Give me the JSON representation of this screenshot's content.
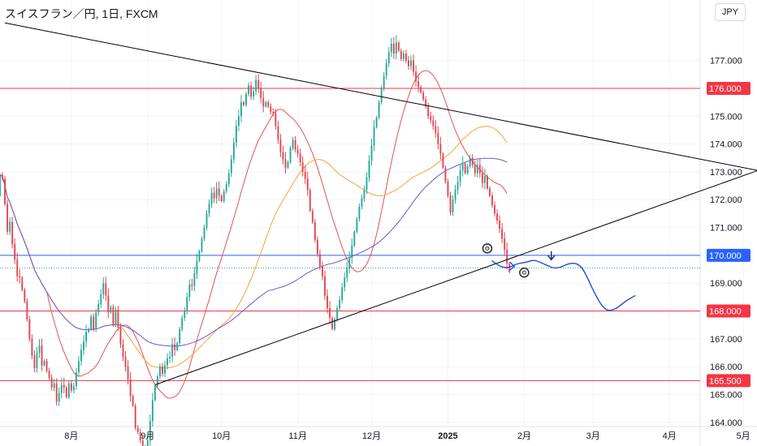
{
  "header": {
    "title": "スイスフラン／円, 1日, FXCM",
    "currency_button": "JPY"
  },
  "colors": {
    "bull": "#26a69a",
    "bear": "#e5434c",
    "grid": "#f0f3fa",
    "axis_text": "#131722",
    "red_level": "#f23645",
    "blue_level": "#2962ff",
    "sma_short": "#e8524a",
    "sma_mid": "#f7a23b",
    "sma_long": "#6a55d8",
    "trendline": "#000000",
    "projection": "#1c4fd8"
  },
  "chart_data": {
    "type": "candlestick",
    "title": "スイスフラン／円, 1日, FXCM",
    "ylim": [
      163.85,
      178.3
    ],
    "y_ticks": [
      {
        "v": 177,
        "label": "177.000"
      },
      {
        "v": 175,
        "label": "175.000"
      },
      {
        "v": 174,
        "label": "174.000"
      },
      {
        "v": 173,
        "label": "173.000"
      },
      {
        "v": 172,
        "label": "172.000"
      },
      {
        "v": 171,
        "label": "171.000"
      },
      {
        "v": 169,
        "label": "169.000"
      },
      {
        "v": 167,
        "label": "167.000"
      },
      {
        "v": 166,
        "label": "166.000"
      },
      {
        "v": 165,
        "label": "165.000"
      },
      {
        "v": 164,
        "label": "164.000"
      }
    ],
    "x_ticks": [
      {
        "day": 29,
        "label": "8月",
        "bold": false
      },
      {
        "day": 60,
        "label": "9月",
        "bold": false
      },
      {
        "day": 90,
        "label": "10月",
        "bold": false
      },
      {
        "day": 121,
        "label": "11月",
        "bold": false
      },
      {
        "day": 151,
        "label": "12月",
        "bold": false
      },
      {
        "day": 182,
        "label": "2025",
        "bold": true
      },
      {
        "day": 213,
        "label": "2月",
        "bold": false
      },
      {
        "day": 241,
        "label": "3月",
        "bold": false
      },
      {
        "day": 272,
        "label": "4月",
        "bold": false
      },
      {
        "day": 302,
        "label": "5月",
        "bold": false
      }
    ],
    "horizontal_levels": [
      {
        "v": 176.0,
        "label": "176.000",
        "color": "red"
      },
      {
        "v": 170.0,
        "label": "170.000",
        "color": "blue"
      },
      {
        "v": 168.0,
        "label": "168.000",
        "color": "red"
      },
      {
        "v": 165.5,
        "label": "165.500",
        "color": "red"
      }
    ],
    "dotted_level": 169.55,
    "trendlines": [
      {
        "from": {
          "day": 2,
          "v": 178.35
        },
        "to": {
          "day": 308,
          "v": 173.05
        }
      },
      {
        "from": {
          "day": 63,
          "v": 165.35
        },
        "to": {
          "day": 308,
          "v": 173.05
        }
      }
    ],
    "anchor": {
      "day": 212,
      "close": 169.4
    },
    "candle_deltas": [
      0.75,
      -0.15,
      -0.9,
      -1.0,
      0.35,
      -0.8,
      -0.55,
      -0.6,
      -0.05,
      -0.45,
      -0.4,
      -0.65,
      -0.7,
      -0.6,
      -0.45,
      0.55,
      0.25,
      -0.7,
      0.15,
      -0.35,
      -0.25,
      -0.35,
      0.15,
      -0.65,
      0.3,
      0.3,
      -0.1,
      -0.35,
      0.5,
      -0.25,
      0.15,
      0.5,
      0.4,
      0.4,
      0.3,
      0.35,
      0.1,
      0.45,
      -0.45,
      0.6,
      0.3,
      0.35,
      0.4,
      -0.45,
      -0.6,
      0.2,
      -0.65,
      0.55,
      -0.65,
      -0.6,
      -0.45,
      -0.35,
      -0.45,
      -0.6,
      -0.35,
      -0.8,
      -0.15,
      -0.3,
      -0.85,
      0.5,
      0.35,
      0.7,
      0.75,
      0.5,
      0.35,
      0.35,
      -0.25,
      0.3,
      0.25,
      0.05,
      0.45,
      -0.2,
      0.25,
      0.5,
      0.4,
      0.25,
      0.5,
      0.45,
      -0.05,
      0.45,
      0.45,
      0.35,
      0.45,
      0.4,
      0.5,
      0.35,
      0.4,
      -0.2,
      0.35,
      -0.25,
      -0.2,
      0.35,
      0.25,
      0.4,
      0.5,
      0.6,
      0.6,
      0.35,
      0.5,
      -0.1,
      0.4,
      0.3,
      -0.4,
      0.2,
      0.4,
      -0.3,
      -0.35,
      -0.3,
      0.15,
      -0.15,
      -0.2,
      -0.05,
      -0.45,
      -0.5,
      -0.45,
      -0.25,
      -0.3,
      0.2,
      0.5,
      0.3,
      -0.35,
      -0.15,
      -0.3,
      -0.35,
      -0.25,
      -0.4,
      -0.75,
      -0.4,
      -0.65,
      -0.5,
      -0.45,
      -0.35,
      -0.7,
      -0.45,
      -0.35,
      -0.4,
      0.35,
      0.4,
      0.3,
      0.45,
      0.35,
      0.35,
      0.35,
      0.45,
      0.5,
      0.45,
      0.45,
      0.3,
      0.3,
      0.45,
      0.6,
      0.55,
      0.65,
      0.35,
      0.55,
      0.5,
      0.45,
      0.45,
      0.4,
      0.3,
      -0.35,
      0.4,
      -0.3,
      -0.3,
      0.2,
      -0.25,
      -0.2,
      0.2,
      -0.4,
      -0.35,
      -0.2,
      -0.2,
      -0.25,
      -0.25,
      -0.35,
      -0.15,
      -0.2,
      -0.25,
      -0.4,
      -0.35,
      -0.5,
      -0.5,
      -0.5,
      -0.6,
      0.45,
      0.35,
      0.3,
      0.4,
      0.25,
      -0.35,
      0.25,
      0.3,
      -0.25,
      -0.3,
      0.3,
      -0.3,
      -0.35,
      0.25,
      -0.45,
      -0.25,
      -0.35,
      -0.3,
      -0.25,
      -0.3,
      -0.35,
      -0.4,
      -0.5,
      -0.3
    ]
  },
  "annotations": {
    "circles": [
      {
        "day": 198,
        "v": 170.25
      },
      {
        "day": 213,
        "v": 169.38
      }
    ],
    "projection_path": [
      {
        "day": 200,
        "v": 169.8
      },
      {
        "day": 203,
        "v": 169.6
      },
      {
        "day": 206,
        "v": 169.55
      },
      {
        "day": 208,
        "v": 169.6
      },
      {
        "day": 210,
        "v": 169.7
      },
      {
        "day": 214,
        "v": 169.75
      },
      {
        "day": 217,
        "v": 169.85
      },
      {
        "day": 222,
        "v": 169.65
      },
      {
        "day": 226,
        "v": 169.5
      },
      {
        "day": 232,
        "v": 169.75
      },
      {
        "day": 236,
        "v": 169.65
      },
      {
        "day": 239,
        "v": 169.15
      },
      {
        "day": 242,
        "v": 168.55
      },
      {
        "day": 246,
        "v": 168.0
      },
      {
        "day": 250,
        "v": 168.05
      },
      {
        "day": 254,
        "v": 168.35
      },
      {
        "day": 258,
        "v": 168.55
      }
    ],
    "arrows": [
      {
        "day": 209,
        "v": 169.6,
        "dir": "right"
      },
      {
        "day": 224,
        "v": 169.9,
        "dir": "down"
      }
    ]
  }
}
